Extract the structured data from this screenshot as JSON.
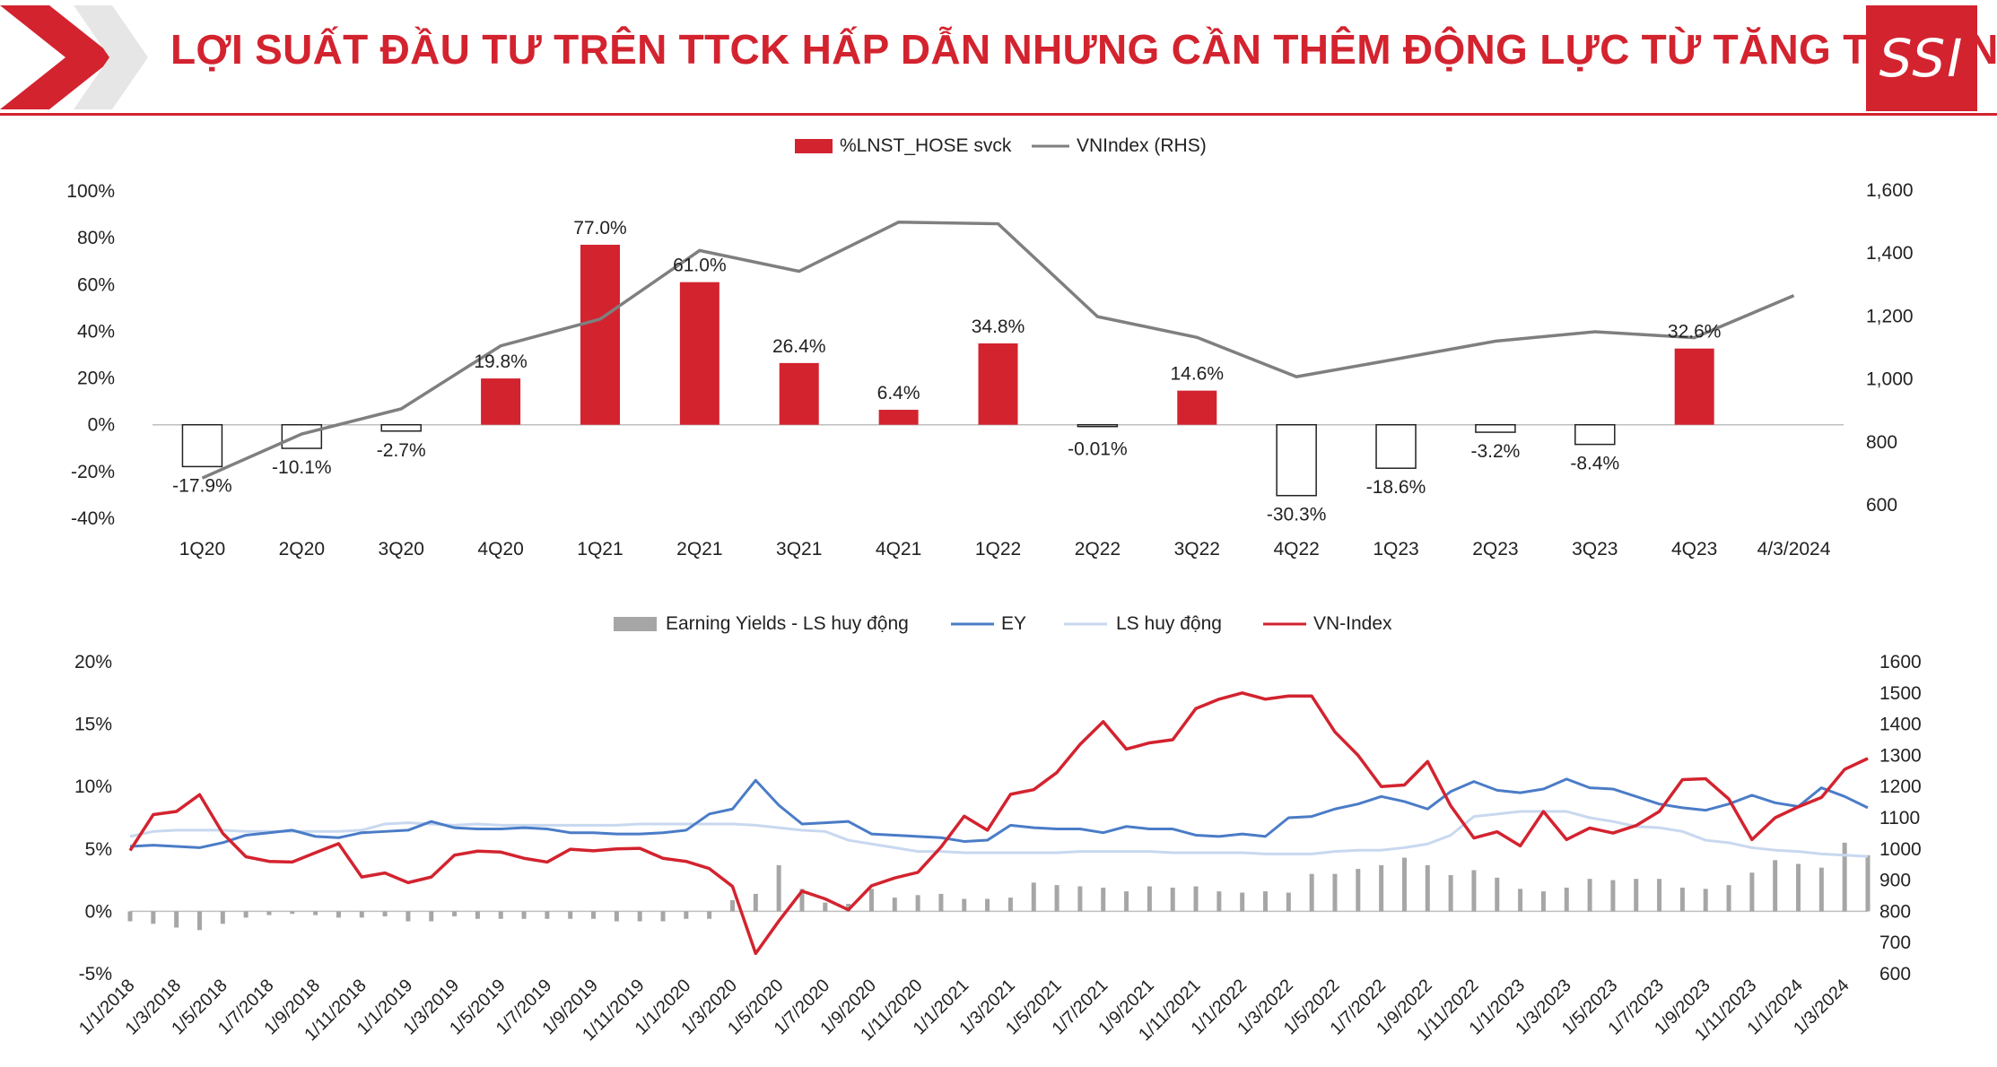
{
  "header": {
    "title": "LỢI SUẤT ĐẦU TƯ TRÊN TTCK HẤP DẪN NHƯNG CẦN THÊM ĐỘNG LỰC TỪ TĂNG TRƯỞNG",
    "logo_text": "SSI"
  },
  "colors": {
    "accent": "#d3232f",
    "chart1_line": "#7f7f7f",
    "ey_line": "#4a7cc7",
    "ls_line": "#c8d8ef",
    "vnindex_line": "#d3232f",
    "bar_gray": "#a6a6a6"
  },
  "chart_data": [
    {
      "type": "bar",
      "title": "",
      "categories": [
        "1Q20",
        "2Q20",
        "3Q20",
        "4Q20",
        "1Q21",
        "2Q21",
        "3Q21",
        "4Q21",
        "1Q22",
        "2Q22",
        "3Q22",
        "4Q22",
        "1Q23",
        "2Q23",
        "3Q23",
        "4Q23",
        "4/3/2024"
      ],
      "series": [
        {
          "name": "%LNST_HOSE svck",
          "kind": "bar",
          "axis": "left",
          "values": [
            -17.9,
            -10.1,
            -2.7,
            19.8,
            77.0,
            61.0,
            26.4,
            6.4,
            34.8,
            -0.01,
            14.6,
            -30.3,
            -18.6,
            -3.2,
            -8.4,
            32.6,
            null
          ],
          "labels": [
            "-17.9%",
            "-10.1%",
            "-2.7%",
            "19.8%",
            "77.0%",
            "61.0%",
            "26.4%",
            "6.4%",
            "34.8%",
            "-0.01%",
            "14.6%",
            "-30.3%",
            "-18.6%",
            "-3.2%",
            "-8.4%",
            "32.6%",
            ""
          ]
        },
        {
          "name": "VNIndex (RHS)",
          "kind": "line",
          "axis": "right",
          "values": [
            685,
            825,
            905,
            1105,
            1190,
            1408,
            1342,
            1498,
            1493,
            1198,
            1132,
            1007,
            1063,
            1120,
            1150,
            1131,
            1265
          ]
        }
      ],
      "yleft": {
        "lim": [
          -40,
          100
        ],
        "ticks": [
          "-40%",
          "-20%",
          "0%",
          "20%",
          "40%",
          "60%",
          "80%",
          "100%"
        ]
      },
      "yright": {
        "lim": [
          600,
          1600
        ],
        "ticks": [
          "600",
          "800",
          "1,000",
          "1,200",
          "1,400",
          "1,600"
        ]
      },
      "legend": "top-center",
      "grid": false
    },
    {
      "type": "line",
      "title": "",
      "x": [
        "1/1/2018",
        "1/2/2018",
        "1/3/2018",
        "1/4/2018",
        "1/5/2018",
        "1/6/2018",
        "1/7/2018",
        "1/8/2018",
        "1/9/2018",
        "1/10/2018",
        "1/11/2018",
        "1/12/2018",
        "1/1/2019",
        "1/2/2019",
        "1/3/2019",
        "1/4/2019",
        "1/5/2019",
        "1/6/2019",
        "1/7/2019",
        "1/8/2019",
        "1/9/2019",
        "1/10/2019",
        "1/11/2019",
        "1/12/2019",
        "1/1/2020",
        "1/2/2020",
        "1/3/2020",
        "1/4/2020",
        "1/5/2020",
        "1/6/2020",
        "1/7/2020",
        "1/8/2020",
        "1/9/2020",
        "1/10/2020",
        "1/11/2020",
        "1/12/2020",
        "1/1/2021",
        "1/2/2021",
        "1/3/2021",
        "1/4/2021",
        "1/5/2021",
        "1/6/2021",
        "1/7/2021",
        "1/8/2021",
        "1/9/2021",
        "1/10/2021",
        "1/11/2021",
        "1/12/2021",
        "1/1/2022",
        "1/2/2022",
        "1/3/2022",
        "1/4/2022",
        "1/5/2022",
        "1/6/2022",
        "1/7/2022",
        "1/8/2022",
        "1/9/2022",
        "1/10/2022",
        "1/11/2022",
        "1/12/2022",
        "1/1/2023",
        "1/2/2023",
        "1/3/2023",
        "1/4/2023",
        "1/5/2023",
        "1/6/2023",
        "1/7/2023",
        "1/8/2023",
        "1/9/2023",
        "1/10/2023",
        "1/11/2023",
        "1/12/2023",
        "1/1/2024",
        "1/2/2024",
        "1/3/2024",
        "1/4/2024"
      ],
      "xtick_labels": [
        "1/1/2018",
        "1/3/2018",
        "1/5/2018",
        "1/7/2018",
        "1/9/2018",
        "1/11/2018",
        "1/1/2019",
        "1/3/2019",
        "1/5/2019",
        "1/7/2019",
        "1/9/2019",
        "1/11/2019",
        "1/1/2020",
        "1/3/2020",
        "1/5/2020",
        "1/7/2020",
        "1/9/2020",
        "1/11/2020",
        "1/1/2021",
        "1/3/2021",
        "1/5/2021",
        "1/7/2021",
        "1/9/2021",
        "1/11/2021",
        "1/1/2022",
        "1/3/2022",
        "1/5/2022",
        "1/7/2022",
        "1/9/2022",
        "1/11/2022",
        "1/1/2023",
        "1/3/2023",
        "1/5/2023",
        "1/7/2023",
        "1/9/2023",
        "1/11/2023",
        "1/1/2024",
        "1/3/2024"
      ],
      "series": [
        {
          "name": "Earning Yields - LS huy động",
          "kind": "bar",
          "axis": "left",
          "values": [
            -0.8,
            -1.0,
            -1.3,
            -1.5,
            -1.0,
            -0.5,
            -0.3,
            -0.2,
            -0.3,
            -0.5,
            -0.5,
            -0.4,
            -0.8,
            -0.8,
            -0.4,
            -0.6,
            -0.6,
            -0.6,
            -0.6,
            -0.6,
            -0.6,
            -0.8,
            -0.8,
            -0.8,
            -0.6,
            -0.6,
            0.9,
            1.4,
            3.7,
            1.8,
            0.7,
            0.6,
            1.8,
            1.1,
            1.3,
            1.4,
            1.0,
            1.0,
            1.1,
            2.3,
            2.1,
            2.0,
            1.9,
            1.6,
            2.0,
            1.9,
            2.0,
            1.6,
            1.5,
            1.6,
            1.5,
            3.0,
            3.0,
            3.4,
            3.7,
            4.3,
            3.7,
            2.9,
            3.3,
            2.7,
            1.8,
            1.6,
            1.9,
            2.6,
            2.5,
            2.6,
            2.6,
            1.9,
            1.8,
            2.1,
            3.1,
            4.1,
            3.8,
            3.5,
            5.5,
            4.5
          ]
        },
        {
          "name": "EY",
          "kind": "line",
          "axis": "left",
          "values": [
            5.2,
            5.3,
            5.2,
            5.1,
            5.5,
            6.1,
            6.3,
            6.5,
            6.0,
            5.9,
            6.3,
            6.4,
            6.5,
            7.2,
            6.7,
            6.6,
            6.6,
            6.7,
            6.6,
            6.3,
            6.3,
            6.2,
            6.2,
            6.3,
            6.5,
            7.8,
            8.2,
            10.5,
            8.5,
            7.0,
            7.1,
            7.2,
            6.2,
            6.1,
            6.0,
            5.9,
            5.6,
            5.7,
            6.9,
            6.7,
            6.6,
            6.6,
            6.3,
            6.8,
            6.6,
            6.6,
            6.1,
            6.0,
            6.2,
            6.0,
            7.5,
            7.6,
            8.2,
            8.6,
            9.2,
            8.8,
            8.2,
            9.6,
            10.4,
            9.7,
            9.5,
            9.8,
            10.6,
            9.9,
            9.8,
            9.2,
            8.6,
            8.3,
            8.1,
            8.6,
            9.3,
            8.7,
            8.4,
            9.9,
            9.2,
            8.3
          ]
        },
        {
          "name": "LS huy động",
          "kind": "line",
          "axis": "left",
          "values": [
            6.0,
            6.4,
            6.5,
            6.5,
            6.5,
            6.4,
            6.4,
            6.4,
            6.4,
            6.4,
            6.5,
            7.0,
            7.1,
            7.0,
            6.9,
            7.0,
            6.9,
            6.9,
            6.9,
            6.9,
            6.9,
            6.9,
            7.0,
            7.0,
            7.0,
            7.0,
            7.0,
            6.9,
            6.7,
            6.5,
            6.4,
            5.7,
            5.4,
            5.1,
            4.8,
            4.8,
            4.7,
            4.7,
            4.7,
            4.7,
            4.7,
            4.8,
            4.8,
            4.8,
            4.8,
            4.7,
            4.7,
            4.7,
            4.7,
            4.6,
            4.6,
            4.6,
            4.8,
            4.9,
            4.9,
            5.1,
            5.4,
            6.1,
            7.6,
            7.8,
            8.0,
            8.0,
            8.0,
            7.5,
            7.2,
            6.8,
            6.7,
            6.4,
            5.7,
            5.5,
            5.1,
            4.9,
            4.8,
            4.6,
            4.5,
            4.4
          ]
        },
        {
          "name": "VN-Index",
          "kind": "line",
          "axis": "right",
          "values": [
            995,
            1110,
            1120,
            1174,
            1050,
            975,
            960,
            958,
            988,
            1017,
            910,
            923,
            892,
            910,
            980,
            993,
            990,
            970,
            958,
            999,
            994,
            1000,
            1002,
            970,
            960,
            937,
            880,
            665,
            769,
            865,
            840,
            805,
            882,
            907,
            925,
            1006,
            1105,
            1060,
            1175,
            1190,
            1245,
            1335,
            1408,
            1320,
            1340,
            1350,
            1450,
            1480,
            1500,
            1480,
            1490,
            1490,
            1375,
            1300,
            1200,
            1205,
            1280,
            1138,
            1035,
            1055,
            1010,
            1120,
            1030,
            1067,
            1051,
            1075,
            1120,
            1222,
            1225,
            1160,
            1030,
            1100,
            1135,
            1165,
            1255,
            1290
          ]
        }
      ],
      "yleft": {
        "lim": [
          -5,
          20
        ],
        "ticks": [
          "-5%",
          "0%",
          "5%",
          "10%",
          "15%",
          "20%"
        ]
      },
      "yright": {
        "lim": [
          600,
          1600
        ],
        "ticks": [
          "600",
          "700",
          "800",
          "900",
          "1000",
          "1100",
          "1200",
          "1300",
          "1400",
          "1500",
          "1600"
        ]
      },
      "legend": "top-center",
      "grid": false
    }
  ]
}
